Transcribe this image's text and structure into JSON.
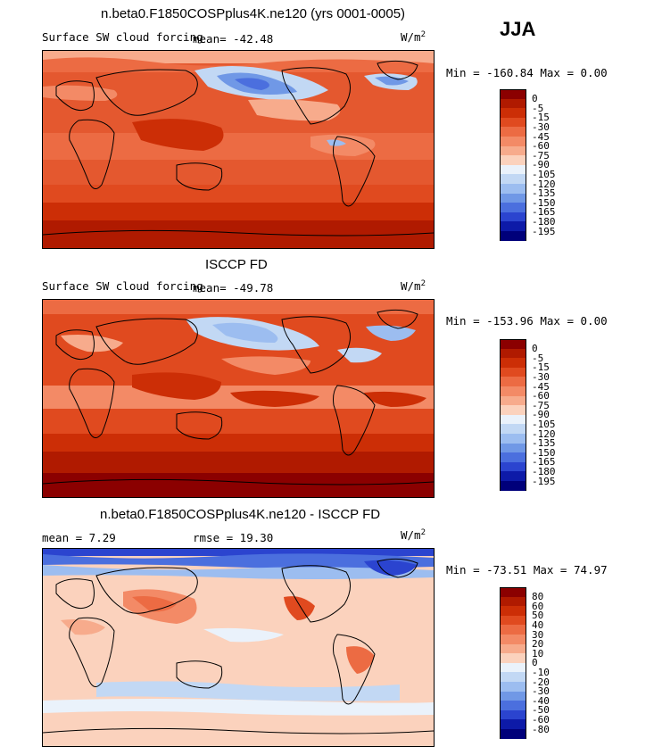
{
  "page_title": "n.beta0.F1850COSPplus4K.ne120 (yrs 0001-0005)",
  "season": "JJA",
  "units_base": "W/m",
  "units_exp": "2",
  "panels": [
    {
      "id": "model",
      "subtitle": "Surface SW cloud forcing",
      "stat_text": "mean=  -42.48",
      "range_text": "Min = -160.84  Max =    0.00"
    },
    {
      "id": "obs",
      "heading": "ISCCP FD",
      "subtitle": "Surface SW cloud forcing",
      "stat_text": "mean=  -49.78",
      "range_text": "Min = -153.96  Max =    0.00"
    },
    {
      "id": "diff",
      "heading": "n.beta0.F1850COSPplus4K.ne120 - ISCCP FD",
      "mean_text": "mean =     7.29",
      "rmse_text": "rmse =   19.30",
      "range_text": "Min = -73.51  Max =  74.97"
    }
  ],
  "chart_data": [
    {
      "type": "heatmap",
      "title": "n.beta0.F1850COSPplus4K.ne120 (yrs 0001-0005)",
      "subtitle": "Surface SW cloud forcing",
      "season": "JJA",
      "units": "W/m^2",
      "mean": -42.48,
      "min": -160.84,
      "max": 0.0,
      "levels": [
        "0",
        "-5",
        "-15",
        "-30",
        "-45",
        "-60",
        "-75",
        "-90",
        "-105",
        "-120",
        "-135",
        "-150",
        "-165",
        "-180",
        "-195"
      ],
      "colors": [
        "#8b0000",
        "#b01a00",
        "#cc2e06",
        "#e04a1f",
        "#ec6b43",
        "#f38a66",
        "#f7ab8c",
        "#fbd2bd",
        "#eaf2fb",
        "#c2d8f4",
        "#9cbdf0",
        "#7098e6",
        "#4b6fde",
        "#2b44cf",
        "#0d1aa8",
        "#00007a"
      ]
    },
    {
      "type": "heatmap",
      "title": "ISCCP FD",
      "subtitle": "Surface SW cloud forcing",
      "season": "JJA",
      "units": "W/m^2",
      "mean": -49.78,
      "min": -153.96,
      "max": 0.0,
      "levels": [
        "0",
        "-5",
        "-15",
        "-30",
        "-45",
        "-60",
        "-75",
        "-90",
        "-105",
        "-120",
        "-135",
        "-150",
        "-165",
        "-180",
        "-195"
      ],
      "colors": [
        "#8b0000",
        "#b01a00",
        "#cc2e06",
        "#e04a1f",
        "#ec6b43",
        "#f38a66",
        "#f7ab8c",
        "#fbd2bd",
        "#eaf2fb",
        "#c2d8f4",
        "#9cbdf0",
        "#7098e6",
        "#4b6fde",
        "#2b44cf",
        "#0d1aa8",
        "#00007a"
      ]
    },
    {
      "type": "heatmap",
      "title": "n.beta0.F1850COSPplus4K.ne120 - ISCCP FD",
      "season": "JJA",
      "units": "W/m^2",
      "mean": 7.29,
      "rmse": 19.3,
      "min": -73.51,
      "max": 74.97,
      "levels": [
        "80",
        "60",
        "50",
        "40",
        "30",
        "20",
        "10",
        "0",
        "-10",
        "-20",
        "-30",
        "-40",
        "-50",
        "-60",
        "-80"
      ],
      "colors": [
        "#8b0000",
        "#b01a00",
        "#cc2e06",
        "#e04a1f",
        "#ec6b43",
        "#f38a66",
        "#f7ab8c",
        "#fbd2bd",
        "#eaf2fb",
        "#c2d8f4",
        "#9cbdf0",
        "#7098e6",
        "#4b6fde",
        "#2b44cf",
        "#0d1aa8",
        "#00007a"
      ]
    }
  ]
}
